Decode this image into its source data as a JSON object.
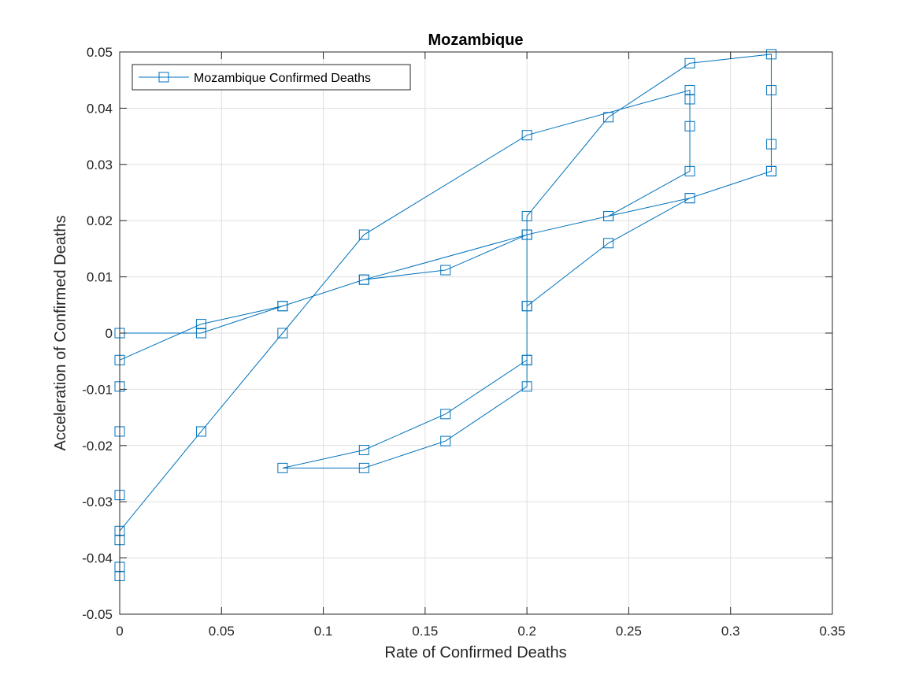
{
  "chart_data": {
    "type": "line",
    "title": "Mozambique",
    "xlabel": "Rate of Confirmed Deaths",
    "ylabel": "Acceleration of Confirmed Deaths",
    "xlim": [
      0,
      0.35
    ],
    "ylim": [
      -0.05,
      0.05
    ],
    "xticks": [
      0,
      0.05,
      0.1,
      0.15,
      0.2,
      0.25,
      0.3,
      0.35
    ],
    "xtick_labels": [
      "0",
      "0.05",
      "0.1",
      "0.15",
      "0.2",
      "0.25",
      "0.3",
      "0.35"
    ],
    "yticks": [
      -0.05,
      -0.04,
      -0.03,
      -0.02,
      -0.01,
      0,
      0.01,
      0.02,
      0.03,
      0.04,
      0.05
    ],
    "ytick_labels": [
      "-0.05",
      "-0.04",
      "-0.03",
      "-0.02",
      "-0.01",
      "0",
      "0.01",
      "0.02",
      "0.03",
      "0.04",
      "0.05"
    ],
    "grid": true,
    "legend_position": "top-left",
    "series_color": "#0072BD",
    "marker": "square",
    "series": [
      {
        "name": "Mozambique Confirmed Deaths",
        "x": [
          0,
          0.04,
          0.08,
          0.12,
          0.16,
          0.2,
          0.24,
          0.28,
          0.28,
          0.28,
          0.28,
          0.2,
          0.12,
          0.08,
          0.04,
          0,
          0,
          0,
          0,
          0,
          0,
          0,
          0,
          0.04,
          0.08,
          0.12,
          0.2,
          0.24,
          0.28,
          0.32,
          0.32,
          0.32,
          0.32,
          0.28,
          0.24,
          0.2,
          0.2,
          0.2,
          0.16,
          0.12,
          0.08,
          0.12,
          0.16,
          0.2,
          0.2,
          0.2,
          0.24,
          0.28,
          0.32
        ],
        "y": [
          -0.0048,
          0.0016,
          0.0048,
          0.0095,
          0.0112,
          0.0175,
          0.0208,
          0.0288,
          0.0368,
          0.0416,
          0.0432,
          0.0352,
          0.0175,
          0,
          -0.0175,
          -0.0352,
          -0.0368,
          -0.0416,
          -0.0432,
          -0.0288,
          -0.0175,
          -0.0095,
          0,
          0,
          0.0048,
          0.0095,
          0.0175,
          0.0208,
          0.024,
          0.0288,
          0.0336,
          0.0432,
          0.0496,
          0.048,
          0.0384,
          0.0208,
          0.0048,
          -0.0048,
          -0.0144,
          -0.0208,
          -0.024,
          -0.024,
          -0.0192,
          -0.0095,
          -0.0048,
          0.0048,
          0.016,
          0.024,
          0.0288
        ]
      }
    ]
  }
}
